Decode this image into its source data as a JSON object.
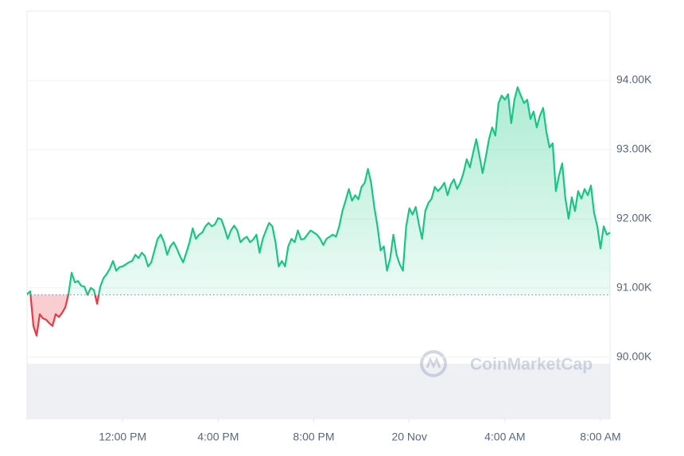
{
  "chart_data": {
    "type": "line",
    "x": [
      0,
      8,
      16,
      24,
      32,
      40,
      48,
      56,
      64,
      72,
      80,
      88,
      96,
      104,
      112,
      120,
      128,
      136,
      144,
      152,
      160,
      168,
      176,
      184,
      192,
      200,
      208,
      216,
      224,
      232,
      240,
      248,
      256,
      264,
      272,
      280,
      288,
      296,
      304,
      312,
      320,
      328,
      336,
      344,
      352,
      360,
      368,
      376,
      384,
      392,
      400,
      408,
      416,
      424,
      432,
      440,
      448,
      456,
      464,
      472,
      480,
      488,
      496,
      504,
      512,
      520,
      528,
      536,
      544,
      552,
      560,
      568,
      576,
      584,
      592,
      600,
      608,
      616,
      624,
      632,
      640,
      648,
      656,
      664,
      672,
      680,
      688,
      696,
      704,
      712,
      720,
      728,
      736,
      744,
      752,
      760,
      768,
      776,
      784,
      792,
      800,
      808,
      816,
      824,
      832,
      840,
      848,
      856,
      864,
      872,
      880,
      888,
      896,
      904,
      912,
      920,
      928,
      936,
      944,
      952,
      960,
      968,
      976,
      984,
      992,
      1000,
      1008,
      1016,
      1024,
      1032,
      1040,
      1048,
      1056,
      1064,
      1072,
      1080,
      1088,
      1096,
      1104,
      1112,
      1120,
      1128,
      1136,
      1144,
      1152,
      1160,
      1168,
      1176,
      1184,
      1192,
      1200,
      1208,
      1216,
      1224,
      1232,
      1240,
      1248,
      1256,
      1264,
      1272,
      1280,
      1288,
      1296,
      1304,
      1312,
      1320,
      1328,
      1336,
      1344,
      1352,
      1360,
      1368,
      1376,
      1384,
      1392,
      1400,
      1408,
      1416,
      1424,
      1432,
      1440,
      1448,
      1456,
      1464
    ],
    "values": [
      90.91,
      90.95,
      90.45,
      90.31,
      90.62,
      90.56,
      90.54,
      90.49,
      90.45,
      90.62,
      90.58,
      90.64,
      90.72,
      90.91,
      91.22,
      91.08,
      91.1,
      91.03,
      91.02,
      90.9,
      91.0,
      90.97,
      90.77,
      91.02,
      91.14,
      91.2,
      91.28,
      91.39,
      91.25,
      91.3,
      91.31,
      91.34,
      91.37,
      91.39,
      91.48,
      91.43,
      91.51,
      91.46,
      91.31,
      91.37,
      91.54,
      91.71,
      91.77,
      91.66,
      91.48,
      91.6,
      91.66,
      91.57,
      91.46,
      91.37,
      91.51,
      91.66,
      91.86,
      91.71,
      91.77,
      91.8,
      91.89,
      91.94,
      91.89,
      91.92,
      92.01,
      91.99,
      91.86,
      91.71,
      91.83,
      91.9,
      91.83,
      91.66,
      91.71,
      91.74,
      91.66,
      91.7,
      91.77,
      91.51,
      91.71,
      91.83,
      91.94,
      91.89,
      91.66,
      91.31,
      91.39,
      91.31,
      91.6,
      91.71,
      91.66,
      91.83,
      91.7,
      91.71,
      91.77,
      91.83,
      91.8,
      91.77,
      91.71,
      91.62,
      91.71,
      91.74,
      91.77,
      91.74,
      91.89,
      92.11,
      92.26,
      92.43,
      92.26,
      92.34,
      92.28,
      92.46,
      92.52,
      92.72,
      92.52,
      92.17,
      91.89,
      91.54,
      91.6,
      91.25,
      91.43,
      91.77,
      91.48,
      91.34,
      91.25,
      91.89,
      92.15,
      92.06,
      92.17,
      91.92,
      91.71,
      92.11,
      92.23,
      92.29,
      92.46,
      92.4,
      92.45,
      92.52,
      92.34,
      92.49,
      92.57,
      92.43,
      92.52,
      92.66,
      92.86,
      92.74,
      92.95,
      93.15,
      92.91,
      92.66,
      92.89,
      93.15,
      93.32,
      93.2,
      93.67,
      93.78,
      93.72,
      93.8,
      93.38,
      93.72,
      93.9,
      93.78,
      93.67,
      93.72,
      93.44,
      93.55,
      93.32,
      93.49,
      93.6,
      93.26,
      93.03,
      93.09,
      92.4,
      92.63,
      92.8,
      92.29,
      92.0,
      92.31,
      92.11,
      92.4,
      92.29,
      92.43,
      92.34,
      92.48,
      92.08,
      91.89,
      91.57,
      91.89,
      91.77,
      91.8
    ],
    "baseline": 90.9,
    "up_color": "#16c784",
    "down_color": "#ea3943",
    "xlim": [
      0,
      1464
    ],
    "xticks": [
      {
        "value": 240,
        "label": "12:00 PM"
      },
      {
        "value": 480,
        "label": "4:00 PM"
      },
      {
        "value": 720,
        "label": "8:00 PM"
      },
      {
        "value": 960,
        "label": "20 Nov"
      },
      {
        "value": 1200,
        "label": "4:00 AM"
      },
      {
        "value": 1440,
        "label": "8:00 AM"
      }
    ],
    "ylim": [
      89.1,
      95.0
    ],
    "yticks": [
      {
        "value": 90,
        "label": "90.00K"
      },
      {
        "value": 91,
        "label": "91.00K"
      },
      {
        "value": 92,
        "label": "92.00K"
      },
      {
        "value": 93,
        "label": "93.00K"
      },
      {
        "value": 94,
        "label": "94.00K"
      }
    ],
    "grid": true,
    "watermark": "CoinMarketCap"
  }
}
